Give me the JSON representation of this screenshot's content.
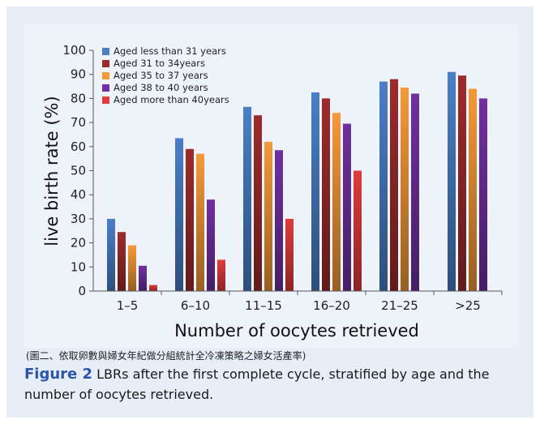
{
  "note_text": "(圖二、依取卵數與婦女年紀做分組統計全冷凍策略之婦女活產率)",
  "caption": {
    "label": "Figure 2",
    "text": "LBRs after the first complete cycle, stratified by age and the number of oocytes retrieved."
  },
  "chart_data": {
    "type": "bar",
    "xlabel": "Number of oocytes retrieved",
    "ylabel": "live birth rate (%)",
    "ylim": [
      0,
      100
    ],
    "yticks": [
      0,
      10,
      20,
      30,
      40,
      50,
      60,
      70,
      80,
      90,
      100
    ],
    "grid": false,
    "legend_position": "top-left",
    "categories": [
      "1–5",
      "6–10",
      "11–15",
      "16–20",
      "21–25",
      ">25"
    ],
    "series": [
      {
        "name": "Aged less than 31 years",
        "color": "#4a7fc6",
        "values": [
          30,
          63.5,
          76.5,
          82.5,
          87,
          91
        ]
      },
      {
        "name": "Aged 31 to 34years",
        "color": "#9e2b2b",
        "values": [
          24.5,
          59,
          73,
          80,
          88,
          89.5
        ]
      },
      {
        "name": "Aged 35 to 37 years",
        "color": "#f39a3a",
        "values": [
          19,
          57,
          62,
          74,
          84.5,
          84
        ]
      },
      {
        "name": "Aged 38 to 40 years",
        "color": "#7030a0",
        "values": [
          10.5,
          38,
          58.5,
          69.5,
          82,
          80
        ]
      },
      {
        "name": "Aged more than 40years",
        "color": "#e03c3c",
        "values": [
          2.5,
          13,
          30,
          50,
          null,
          null
        ]
      }
    ]
  }
}
